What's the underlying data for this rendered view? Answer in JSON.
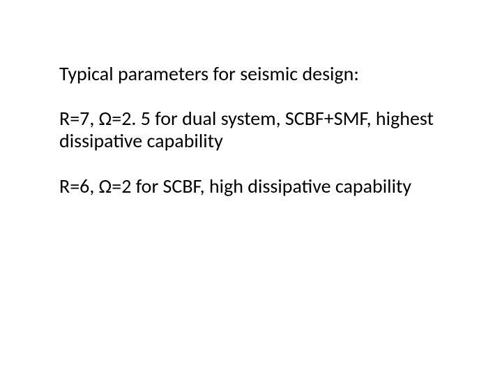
{
  "slide": {
    "background_color": "#ffffff",
    "text_color": "#000000",
    "font_family": "Calibri",
    "font_size_pt": 28,
    "paragraphs": [
      "Typical parameters for seismic design:",
      "R=7, Ω=2. 5 for dual system, SCBF+SMF, highest dissipative capability",
      "R=6, Ω=2 for SCBF, high dissipative capability"
    ]
  }
}
